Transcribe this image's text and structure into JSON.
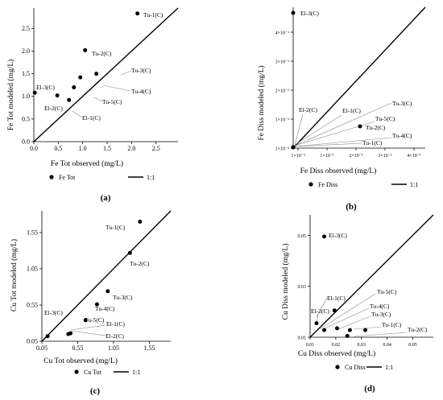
{
  "chart_data": [
    {
      "panel": "(a)",
      "type": "scatter",
      "xlabel": "Fe Tot observed (mg/L)",
      "ylabel": "Fe Tot modeled (mg/L)",
      "xlim": [
        0,
        3.0
      ],
      "ylim": [
        0,
        3.0
      ],
      "xticks": [
        "0.0",
        "0.5",
        "1.0",
        "1.5",
        "2.0",
        "2.5"
      ],
      "yticks": [
        "0.0",
        "0.5",
        "1.0",
        "1.5",
        "2.0",
        "2.5"
      ],
      "series": [
        {
          "name": "Fe Tot",
          "points": [
            {
              "label": "Tu-1(C)",
              "x": 2.12,
              "y": 2.83
            },
            {
              "label": "Tu-2(C)",
              "x": 1.05,
              "y": 2.02
            },
            {
              "label": "Tu-3(C)",
              "x": 1.28,
              "y": 1.5
            },
            {
              "label": "Tu-4(C)",
              "x": 0.95,
              "y": 1.42
            },
            {
              "label": "Tu-5(C)",
              "x": 0.82,
              "y": 1.2
            },
            {
              "label": "El-3(C)",
              "x": 0.02,
              "y": 1.08
            },
            {
              "label": "El-2(C)",
              "x": 0.48,
              "y": 1.02
            },
            {
              "label": "El-1(C)",
              "x": 0.72,
              "y": 0.92
            }
          ]
        }
      ],
      "legend": [
        "Fe Tot",
        "1:1"
      ]
    },
    {
      "panel": "(b)",
      "type": "scatter",
      "xlabel": "Fe Diss observed (mg/L)",
      "ylabel": "Fe Diss modeled (mg/L)",
      "xticks": [
        "1×10⁻³",
        "1×10⁻¹",
        "2×10⁻¹",
        "3×10⁻¹",
        "4×10⁻¹"
      ],
      "yticks": [
        "1×10⁻³",
        "1×10⁻¹",
        "2×10⁻¹",
        "3×10⁻¹",
        "4×10⁻¹"
      ],
      "series": [
        {
          "name": "Fe Diss",
          "points": [
            {
              "label": "El-3(C)",
              "x": 0.001,
              "y": 0.48
            },
            {
              "label": "Tu-2(C)",
              "x": 0.235,
              "y": 0.082
            },
            {
              "label": "El-2(C)",
              "x": 0.001,
              "y": 0.001
            },
            {
              "label": "El-1(C)",
              "x": 0.001,
              "y": 0.001
            },
            {
              "label": "Tu-3(C)",
              "x": 0.001,
              "y": 0.001
            },
            {
              "label": "Tu-5(C)",
              "x": 0.001,
              "y": 0.001
            },
            {
              "label": "Tu-4(C)",
              "x": 0.001,
              "y": 0.001
            },
            {
              "label": "Tu-1(C)",
              "x": 0.001,
              "y": 0.001
            }
          ]
        }
      ],
      "legend": [
        "Fe Diss",
        "1:1"
      ]
    },
    {
      "panel": "(c)",
      "type": "scatter",
      "xlabel": "Cu Tot observed (mg/L)",
      "ylabel": "Cu Tot modeled (mg/L)",
      "xlim": [
        0.05,
        1.85
      ],
      "ylim": [
        0.05,
        1.85
      ],
      "xticks": [
        "0.05",
        "0.55",
        "1.05",
        "1.55"
      ],
      "yticks": [
        "0.05",
        "0.55",
        "1.05",
        "1.55"
      ],
      "series": [
        {
          "name": "Cu Tot",
          "points": [
            {
              "label": "Tu-1(C)",
              "x": 1.42,
              "y": 1.7
            },
            {
              "label": "Tu-2(C)",
              "x": 1.28,
              "y": 1.27
            },
            {
              "label": "Tu-3(C)",
              "x": 0.97,
              "y": 0.74
            },
            {
              "label": "Tu-4(C)",
              "x": 0.82,
              "y": 0.56
            },
            {
              "label": "Tu-5(C)",
              "x": 0.66,
              "y": 0.34
            },
            {
              "label": "El-3(C)",
              "x": 0.13,
              "y": 0.12
            },
            {
              "label": "El-1(C)",
              "x": 0.42,
              "y": 0.15
            },
            {
              "label": "El-2(C)",
              "x": 0.45,
              "y": 0.16
            }
          ]
        }
      ],
      "legend": [
        "Cu Tot",
        "1:1"
      ]
    },
    {
      "panel": "(d)",
      "type": "scatter",
      "xlabel": "Cu Diss observed (mg/L)",
      "ylabel": "Cu Diss modeled (mg/L)",
      "xlim": [
        0.01,
        0.058
      ],
      "ylim": [
        0.01,
        0.058
      ],
      "xticks": [
        "0.01",
        "0.02",
        "0.03",
        "0.04",
        "0.05"
      ],
      "yticks": [
        "0.01",
        "0.03",
        "0.05"
      ],
      "series": [
        {
          "name": "Cu Diss",
          "points": [
            {
              "label": "El-3(C)",
              "x": 0.0155,
              "y": 0.0495
            },
            {
              "label": "El-1(C)",
              "x": 0.0195,
              "y": 0.0205
            },
            {
              "label": "El-2(C)",
              "x": 0.0125,
              "y": 0.0155
            },
            {
              "label": "Tu-5(C)",
              "x": 0.0155,
              "y": 0.0128
            },
            {
              "label": "Tu-4(C)",
              "x": 0.0205,
              "y": 0.0135
            },
            {
              "label": "Tu-3(C)",
              "x": 0.0255,
              "y": 0.0128
            },
            {
              "label": "Tu-1(C)",
              "x": 0.0315,
              "y": 0.0128
            },
            {
              "label": "Tu-2(C)",
              "x": 0.0245,
              "y": 0.0105
            }
          ]
        }
      ],
      "legend": [
        "Cu Diss",
        "1:1"
      ]
    }
  ]
}
